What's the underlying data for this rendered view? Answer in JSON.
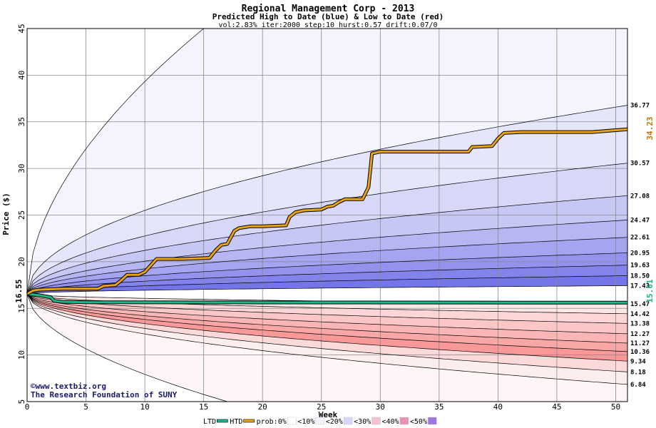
{
  "chart_data": {
    "type": "area",
    "title": "Regional Management Corp - 2013",
    "subtitle": "Predicted High to Date (blue) &  Low to Date (red)",
    "params": "vol:2.83% iter:2000 step:10 hurst:0.57 drift:0.07/0",
    "xlabel": "Week",
    "ylabel": "Price ($)",
    "xlim": [
      0,
      51
    ],
    "ylim": [
      5,
      45
    ],
    "x_ticks": [
      0,
      5,
      10,
      15,
      20,
      25,
      30,
      35,
      40,
      45,
      50
    ],
    "y_ticks": [
      5,
      10,
      15,
      20,
      25,
      30,
      35,
      40,
      45
    ],
    "start_price": 16.55,
    "start_price_label": "16.55",
    "end_low_label": "15.61",
    "end_high_label": "34.23",
    "right_labels": [
      "36.77",
      "30.57",
      "27.08",
      "24.47",
      "22.61",
      "20.95",
      "19.63",
      "18.50",
      "17.43",
      "15.47",
      "14.42",
      "13.38",
      "12.27",
      "11.27",
      "10.36",
      "9.34",
      "8.18",
      "6.84"
    ],
    "credit_lines": [
      "©www.textbiz.org",
      "The Research Foundation of SUNY"
    ],
    "high_quantiles": [
      {
        "end": 45.0,
        "k": 1.0,
        "cap": 45.0
      },
      {
        "end": 36.77,
        "k": 1.0
      },
      {
        "end": 30.57,
        "k": 1.0
      },
      {
        "end": 27.08,
        "k": 1.0
      },
      {
        "end": 24.47,
        "k": 1.0
      },
      {
        "end": 22.61,
        "k": 1.0
      },
      {
        "end": 20.95,
        "k": 1.0
      },
      {
        "end": 19.63,
        "k": 1.0
      },
      {
        "end": 18.5,
        "k": 1.0
      },
      {
        "end": 17.43,
        "k": 1.0
      }
    ],
    "low_quantiles": [
      {
        "end": 15.47,
        "k": 1.0
      },
      {
        "end": 14.42,
        "k": 1.0
      },
      {
        "end": 13.38,
        "k": 1.0
      },
      {
        "end": 12.27,
        "k": 1.0
      },
      {
        "end": 11.27,
        "k": 1.0
      },
      {
        "end": 10.36,
        "k": 1.0
      },
      {
        "end": 9.34,
        "k": 1.0
      },
      {
        "end": 8.18,
        "k": 1.0
      },
      {
        "end": 6.84,
        "k": 1.0
      },
      {
        "end": 5.0,
        "k": 1.0,
        "cap": 5.0
      }
    ],
    "high_band_colors": [
      "#f4f4ff",
      "#e6e6fb",
      "#d7d7f8",
      "#c7c7f5",
      "#b6b6f2",
      "#a4a4f0",
      "#9393ee",
      "#8383ec",
      "#7575ea"
    ],
    "low_band_colors": [
      "#fde6e6",
      "#fcd6d6",
      "#fbc6c6",
      "#fab6b6",
      "#f9a6a6",
      "#f89898",
      "#fbd9d9",
      "#fdeeee",
      "#fef6f6"
    ],
    "htd_series": {
      "name": "HTD",
      "color": "#e8a317",
      "points": [
        [
          0,
          16.55
        ],
        [
          0.5,
          16.9
        ],
        [
          1,
          17.0
        ],
        [
          3,
          17.1
        ],
        [
          6,
          17.1
        ],
        [
          6.5,
          17.4
        ],
        [
          7.5,
          17.5
        ],
        [
          8,
          18.0
        ],
        [
          8.5,
          18.6
        ],
        [
          9.5,
          18.6
        ],
        [
          10,
          18.9
        ],
        [
          10.5,
          19.6
        ],
        [
          11,
          20.3
        ],
        [
          13,
          20.3
        ],
        [
          15.5,
          20.4
        ],
        [
          16,
          21.2
        ],
        [
          16.5,
          21.8
        ],
        [
          17,
          21.9
        ],
        [
          17.3,
          22.6
        ],
        [
          17.6,
          23.3
        ],
        [
          18,
          23.6
        ],
        [
          19,
          23.8
        ],
        [
          20,
          23.8
        ],
        [
          22,
          23.9
        ],
        [
          22.3,
          24.8
        ],
        [
          22.8,
          25.3
        ],
        [
          23.5,
          25.5
        ],
        [
          25,
          25.6
        ],
        [
          25.5,
          25.9
        ],
        [
          26,
          26.0
        ],
        [
          26.5,
          26.4
        ],
        [
          27,
          26.7
        ],
        [
          28.5,
          26.7
        ],
        [
          29,
          28.0
        ],
        [
          29.3,
          31.6
        ],
        [
          30,
          31.8
        ],
        [
          35,
          31.8
        ],
        [
          37.5,
          31.8
        ],
        [
          37.8,
          32.3
        ],
        [
          39.5,
          32.4
        ],
        [
          40,
          33.2
        ],
        [
          40.5,
          33.8
        ],
        [
          42,
          33.9
        ],
        [
          48,
          33.9
        ],
        [
          50,
          34.1
        ],
        [
          51,
          34.2
        ]
      ]
    },
    "ltd_series": {
      "name": "LTD",
      "color": "#1ab88a",
      "points": [
        [
          0,
          16.55
        ],
        [
          1,
          16.4
        ],
        [
          2,
          16.2
        ],
        [
          2.3,
          15.8
        ],
        [
          3,
          15.7
        ],
        [
          5,
          15.65
        ],
        [
          51,
          15.61
        ]
      ]
    },
    "legend": {
      "items": [
        {
          "label": "LTD",
          "swatch": "#1ab88a",
          "kind": "line"
        },
        {
          "label": "HTD",
          "swatch": "#e8a317",
          "kind": "line"
        },
        {
          "label": "prob:0%",
          "swatch": "#ffffff",
          "kind": "box"
        },
        {
          "label": "<10%",
          "swatch": "#f4f4ff",
          "kind": "box"
        },
        {
          "label": "<20%",
          "swatch": "#d7d7f8",
          "kind": "box"
        },
        {
          "label": "<30%",
          "swatch": "#f5c1d5",
          "kind": "box"
        },
        {
          "label": "<40%",
          "swatch": "#e892b8",
          "kind": "box"
        },
        {
          "label": "<50%",
          "swatch": "#a076e0",
          "kind": "box"
        }
      ]
    }
  }
}
